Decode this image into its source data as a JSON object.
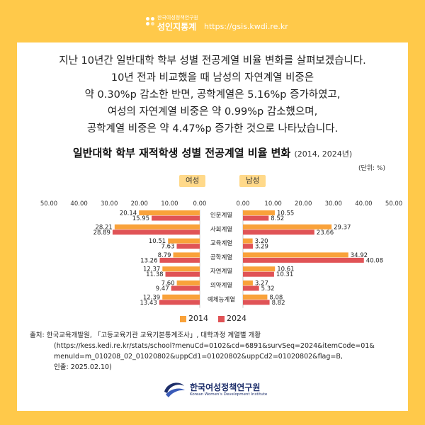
{
  "header": {
    "org_small": "한국여성정책연구원",
    "site_name": "성인지통계",
    "url": "https://gsis.kwdi.re.kr"
  },
  "intro_lines": [
    "지난 10년간 일반대학 학부 성별 전공계열 비율 변화를 살펴보겠습니다.",
    "10년 전과 비교했을 때 남성의 자연계열 비중은",
    "약 0.30%p 감소한 반면, 공학계열은 5.16%p 증가하였고,",
    "여성의 자연계열 비중은 약 0.99%p 감소했으며,",
    "공학계열 비중은 약 4.47%p 증가한 것으로 나타났습니다."
  ],
  "source": {
    "label": "출처:",
    "line1": "한국교육개발원, 「고등교육기관 교육기본통계조사」, 대학과정 계열별 개황",
    "line2": "(https://kess.kedi.re.kr/stats/school?menuCd=0102&cd=6891&survSeq=2024&itemCode=01&",
    "line3": "menuId=m_010208_02_01020802&uppCd1=01020802&uppCd2=01020802&flag=B,",
    "line4": "인출: 2025.02.10)"
  },
  "footer": {
    "org_ko": "한국여성정책연구원",
    "org_en": "Korean Women's Development Institute"
  },
  "colors": {
    "background": "#FFC94A",
    "series_2014": "#F9A23A",
    "series_2024": "#E05356",
    "gender_tag": "#FFD98A"
  },
  "chart_data": {
    "type": "bar",
    "orientation": "horizontal",
    "title": "일반대학 학부 재적학생 성별 전공계열 비율 변화",
    "title_years": "(2014, 2024년)",
    "unit": "(단위: %)",
    "panels": [
      "여성",
      "남성"
    ],
    "categories": [
      "인문계열",
      "사회계열",
      "교육계열",
      "공학계열",
      "자연계열",
      "의약계열",
      "예체능계열"
    ],
    "x_ticks": [
      "50.00",
      "40.00",
      "30.00",
      "20.00",
      "10.00",
      "0.00"
    ],
    "x_ticks_right": [
      "0.00",
      "10.00",
      "20.00",
      "30.00",
      "40.00",
      "50.00"
    ],
    "xlim": [
      0,
      50
    ],
    "legend": [
      "2014",
      "2024"
    ],
    "series": [
      {
        "name": "2014",
        "female": [
          20.14,
          28.21,
          10.51,
          8.79,
          12.37,
          7.6,
          12.39
        ],
        "male": [
          10.55,
          29.37,
          3.2,
          34.92,
          10.61,
          3.27,
          8.08
        ]
      },
      {
        "name": "2024",
        "female": [
          15.95,
          28.89,
          7.63,
          13.26,
          11.38,
          9.47,
          13.43
        ],
        "male": [
          8.52,
          23.66,
          3.29,
          40.08,
          10.31,
          5.32,
          8.82
        ]
      }
    ],
    "grid": false,
    "legend_position": "bottom"
  }
}
